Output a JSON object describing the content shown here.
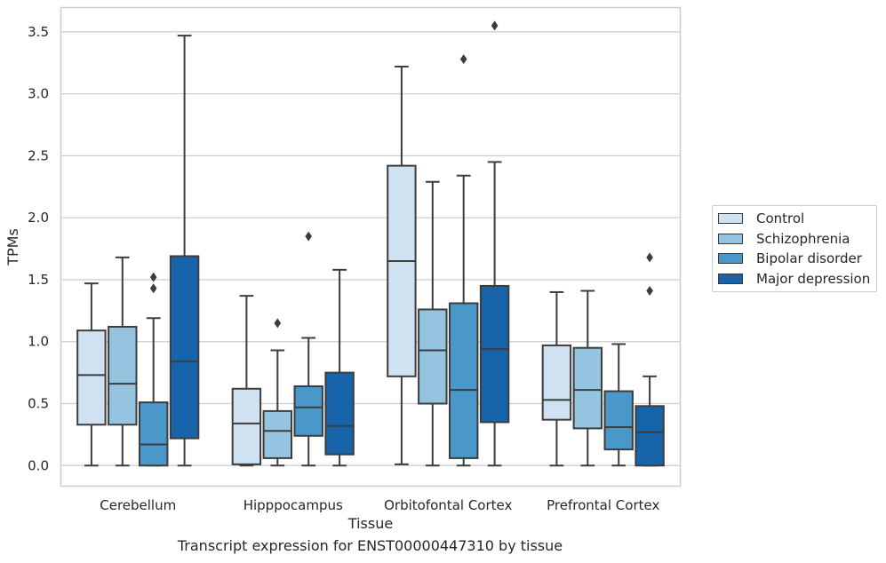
{
  "chart_data": {
    "type": "box",
    "title": "",
    "xlabel": "Tissue",
    "ylabel": "TPMs",
    "ylim": [
      -0.17,
      3.7
    ],
    "yticks": [
      "0.0",
      "0.5",
      "1.0",
      "1.5",
      "2.0",
      "2.5",
      "3.0",
      "3.5"
    ],
    "grid": true,
    "legend_position": "right",
    "categories": [
      "Cerebellum",
      "Hipppocampus",
      "Orbitofontal Cortex",
      "Prefrontal Cortex"
    ],
    "series": [
      {
        "name": "Control",
        "color": "#d0e1f2",
        "boxes": [
          {
            "min": 0.0,
            "q1": 0.33,
            "median": 0.73,
            "q3": 1.09,
            "max": 1.47,
            "outliers": []
          },
          {
            "min": 0.0,
            "q1": 0.01,
            "median": 0.34,
            "q3": 0.62,
            "max": 1.37,
            "outliers": []
          },
          {
            "min": 0.01,
            "q1": 0.72,
            "median": 1.65,
            "q3": 2.42,
            "max": 3.22,
            "outliers": []
          },
          {
            "min": 0.0,
            "q1": 0.37,
            "median": 0.53,
            "q3": 0.97,
            "max": 1.4,
            "outliers": []
          }
        ]
      },
      {
        "name": "Schizophrenia",
        "color": "#94c4df",
        "boxes": [
          {
            "min": 0.0,
            "q1": 0.33,
            "median": 0.66,
            "q3": 1.12,
            "max": 1.68,
            "outliers": []
          },
          {
            "min": 0.0,
            "q1": 0.06,
            "median": 0.28,
            "q3": 0.44,
            "max": 0.93,
            "outliers": [
              1.15
            ]
          },
          {
            "min": 0.0,
            "q1": 0.5,
            "median": 0.93,
            "q3": 1.26,
            "max": 2.29,
            "outliers": []
          },
          {
            "min": 0.0,
            "q1": 0.3,
            "median": 0.61,
            "q3": 0.95,
            "max": 1.41,
            "outliers": []
          }
        ]
      },
      {
        "name": "Bipolar disorder",
        "color": "#4a98c9",
        "boxes": [
          {
            "min": 0.0,
            "q1": 0.0,
            "median": 0.17,
            "q3": 0.51,
            "max": 1.19,
            "outliers": [
              1.43,
              1.52
            ]
          },
          {
            "min": 0.0,
            "q1": 0.24,
            "median": 0.47,
            "q3": 0.64,
            "max": 1.03,
            "outliers": [
              1.85
            ]
          },
          {
            "min": 0.0,
            "q1": 0.06,
            "median": 0.61,
            "q3": 1.31,
            "max": 2.34,
            "outliers": [
              3.28
            ]
          },
          {
            "min": 0.0,
            "q1": 0.13,
            "median": 0.31,
            "q3": 0.6,
            "max": 0.98,
            "outliers": []
          }
        ]
      },
      {
        "name": "Major depression",
        "color": "#1764ab",
        "boxes": [
          {
            "min": 0.0,
            "q1": 0.22,
            "median": 0.84,
            "q3": 1.69,
            "max": 3.47,
            "outliers": []
          },
          {
            "min": 0.0,
            "q1": 0.09,
            "median": 0.32,
            "q3": 0.75,
            "max": 1.58,
            "outliers": []
          },
          {
            "min": 0.0,
            "q1": 0.35,
            "median": 0.94,
            "q3": 1.45,
            "max": 2.45,
            "outliers": [
              3.55
            ]
          },
          {
            "min": 0.0,
            "q1": 0.0,
            "median": 0.27,
            "q3": 0.48,
            "max": 0.72,
            "outliers": [
              1.41,
              1.68
            ]
          }
        ]
      }
    ]
  },
  "caption": "Transcript expression for ENST00000447310 by tissue"
}
